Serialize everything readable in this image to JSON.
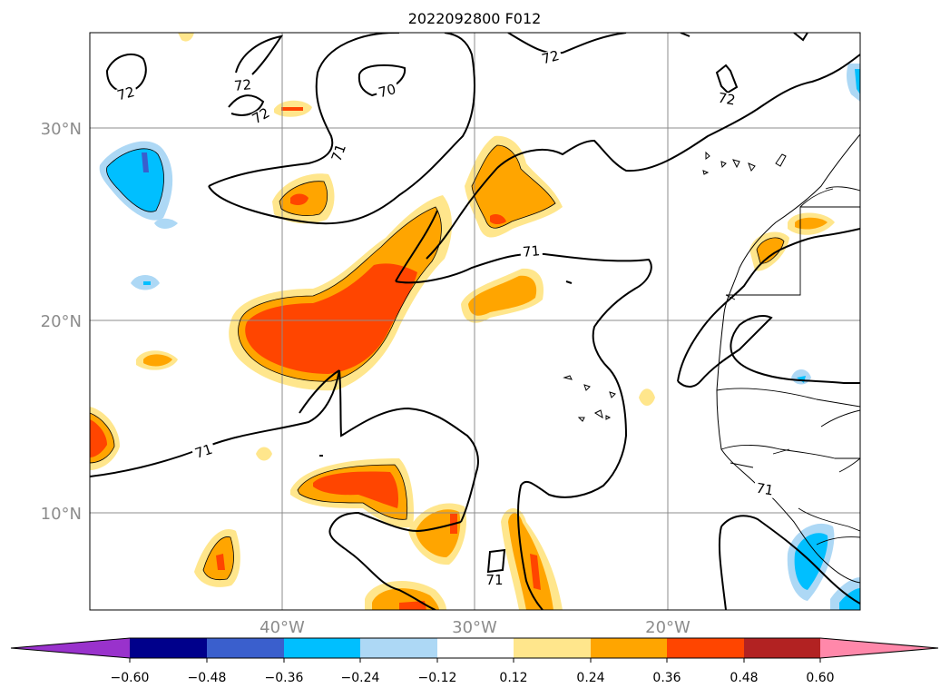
{
  "title": "2022092800 F012",
  "map": {
    "lat_ticks": [
      "30°N",
      "20°N",
      "10°N"
    ],
    "lon_ticks": [
      "40°W",
      "30°W",
      "20°W"
    ],
    "contour_labels": [
      "72",
      "72",
      "72",
      "70",
      "72",
      "72",
      "71",
      "71",
      "71",
      "71",
      "71"
    ]
  },
  "colorbar": {
    "tick_labels": [
      "−0.60",
      "−0.48",
      "−0.36",
      "−0.24",
      "−0.12",
      "0.12",
      "0.24",
      "0.36",
      "0.48",
      "0.60"
    ],
    "colors": [
      "#9932cc",
      "#00008b",
      "#3a5fcd",
      "#00bfff",
      "#add8f5",
      "#ffffff",
      "#ffe68c",
      "#ffa500",
      "#ff4500",
      "#b22222",
      "#ff88aa"
    ]
  }
}
